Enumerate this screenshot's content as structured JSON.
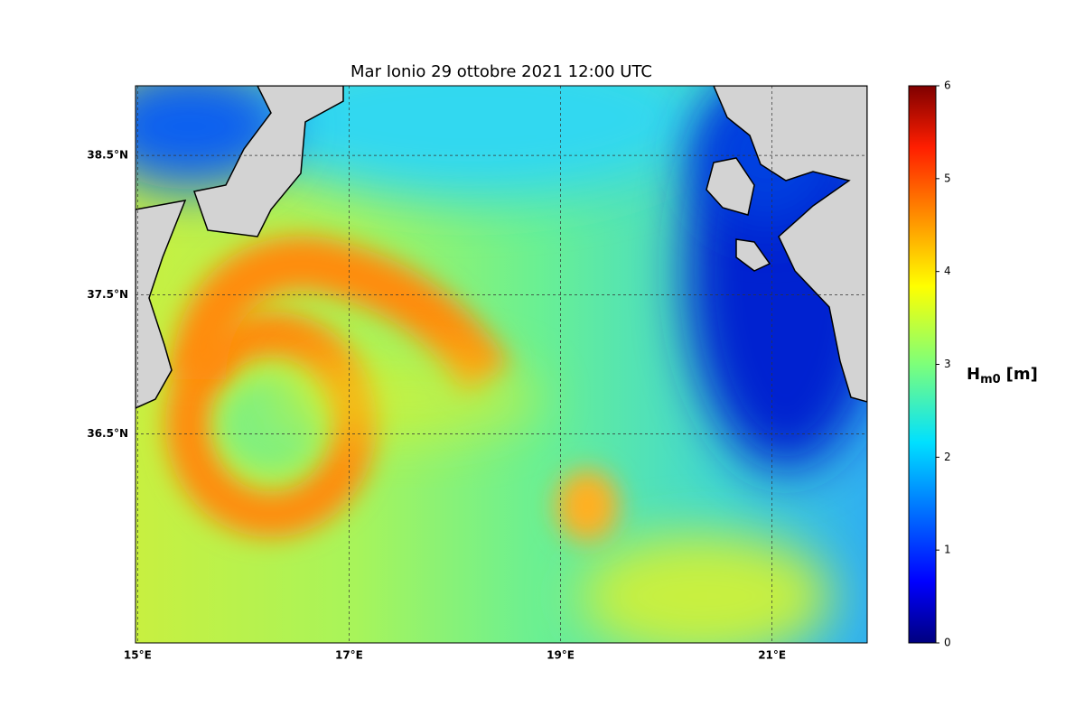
{
  "map": {
    "title": "Mar Ionio  29 ottobre 2021  12:00 UTC",
    "xlim": [
      14.98,
      21.9
    ],
    "ylim": [
      35.0,
      39.0
    ],
    "xticks": [
      {
        "value": 15,
        "label": "15°E"
      },
      {
        "value": 17,
        "label": "17°E"
      },
      {
        "value": 19,
        "label": "19°E"
      },
      {
        "value": 21,
        "label": "21°E"
      }
    ],
    "yticks": [
      {
        "value": 36.5,
        "label": "36.5°N"
      },
      {
        "value": 37.5,
        "label": "37.5°N"
      },
      {
        "value": 38.5,
        "label": "38.5°N"
      }
    ],
    "grid": true,
    "colorbar": {
      "lim": [
        0,
        6
      ],
      "ticks": [
        0,
        1,
        2,
        3,
        4,
        5,
        6
      ],
      "label": {
        "main": "H",
        "subscript": "m0",
        "unit": "[m]"
      }
    }
  }
}
